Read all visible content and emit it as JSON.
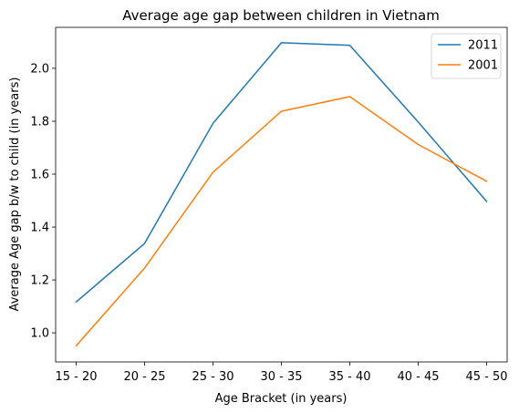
{
  "chart_data": {
    "type": "line",
    "title": "Average age gap between children in Vietnam",
    "xlabel": "Age Bracket (in years)",
    "ylabel": "Average Age gap b/w to child (in years)",
    "categories": [
      "15 - 20",
      "20 - 25",
      "25 - 30",
      "30 - 35",
      "35 - 40",
      "40 - 45",
      "45 - 50"
    ],
    "series": [
      {
        "name": "2011",
        "color": "#1f77b4",
        "values": [
          1.117,
          1.338,
          1.792,
          2.097,
          2.087,
          1.797,
          1.497
        ]
      },
      {
        "name": "2001",
        "color": "#ff7f0e",
        "values": [
          0.951,
          1.245,
          1.607,
          1.838,
          1.893,
          1.712,
          1.573
        ]
      }
    ],
    "ylim": [
      0.89,
      2.155
    ],
    "yticks": [
      1.0,
      1.2,
      1.4,
      1.6,
      1.8,
      2.0
    ],
    "ytick_labels": [
      "1.0",
      "1.2",
      "1.4",
      "1.6",
      "1.8",
      "2.0"
    ],
    "grid": false,
    "legend_position": "top-right"
  }
}
